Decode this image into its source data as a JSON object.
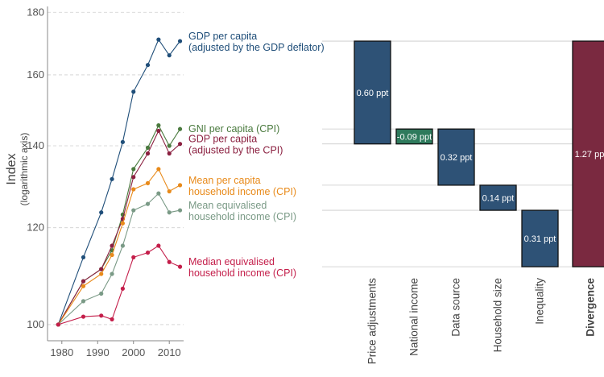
{
  "chart_data": [
    {
      "type": "line",
      "y_scale": "log",
      "ylabel": "Index",
      "ylabel_note": "(logarithmic axis)",
      "ylim": [
        97,
        182
      ],
      "xlim": [
        1976,
        2014
      ],
      "x_ticks": [
        "1980",
        "1990",
        "2000",
        "2010"
      ],
      "y_ticks": [
        "100",
        "120",
        "140",
        "160",
        "180"
      ],
      "x": [
        1979,
        1986,
        1991,
        1994,
        1997,
        2000,
        2004,
        2007,
        2010,
        2013
      ],
      "series": [
        {
          "name": "GDP per capita",
          "name_line2": "(adjusted by the GDP deflator)",
          "color": "#1f4e79",
          "values": [
            100,
            113.5,
            123.5,
            131.5,
            141,
            155,
            163,
            171,
            166,
            170.5
          ]
        },
        {
          "name": "GNI per capita (CPI)",
          "name_line2": "",
          "color": "#4a7a3e",
          "values": [
            100,
            108.5,
            111,
            115,
            123,
            134,
            139.5,
            145.5,
            140,
            144.5
          ]
        },
        {
          "name": "GDP per capita",
          "name_line2": "(adjusted by the CPI)",
          "color": "#8b2040",
          "values": [
            100,
            108.5,
            111,
            116,
            122,
            132,
            138,
            144,
            138,
            140.5
          ]
        },
        {
          "name": "Mean per capita",
          "name_line2": "household income (CPI)",
          "color": "#e88a1a",
          "values": [
            100,
            107.5,
            110,
            114,
            121,
            129,
            130.5,
            134,
            128.5,
            130
          ]
        },
        {
          "name": "Mean equivalised",
          "name_line2": "household income (CPI)",
          "color": "#7a9a86",
          "values": [
            100,
            104.5,
            106,
            110,
            116,
            124,
            125.5,
            128,
            123.5,
            124
          ]
        },
        {
          "name": "Median equivalised",
          "name_line2": "household income (CPI)",
          "color": "#c41e4a",
          "values": [
            100,
            101.5,
            101.7,
            101,
            107,
            113.5,
            114.5,
            116,
            112.5,
            111.5
          ]
        }
      ]
    },
    {
      "type": "bar",
      "subtype": "waterfall",
      "categories": [
        "Price adjustments",
        "National income",
        "Data source",
        "Household size",
        "Inequality",
        "Divergence"
      ],
      "values": [
        0.6,
        -0.09,
        0.32,
        0.14,
        0.31,
        1.27
      ],
      "labels": [
        "0.60 ppt",
        "-0.09 ppt",
        "0.32 ppt",
        "0.14 ppt",
        "0.31 ppt",
        "1.27 ppt"
      ],
      "bar_ranges": [
        [
          140.5,
          170.5
        ],
        [
          140.5,
          144.5
        ],
        [
          130,
          144.5
        ],
        [
          124,
          130
        ],
        [
          111.5,
          124
        ],
        [
          111.5,
          170.5
        ]
      ],
      "colors": [
        "#2e5276",
        "#2e7a5c",
        "#2e5276",
        "#2e5276",
        "#2e5276",
        "#7a2940"
      ],
      "bold_category": "Divergence"
    }
  ]
}
